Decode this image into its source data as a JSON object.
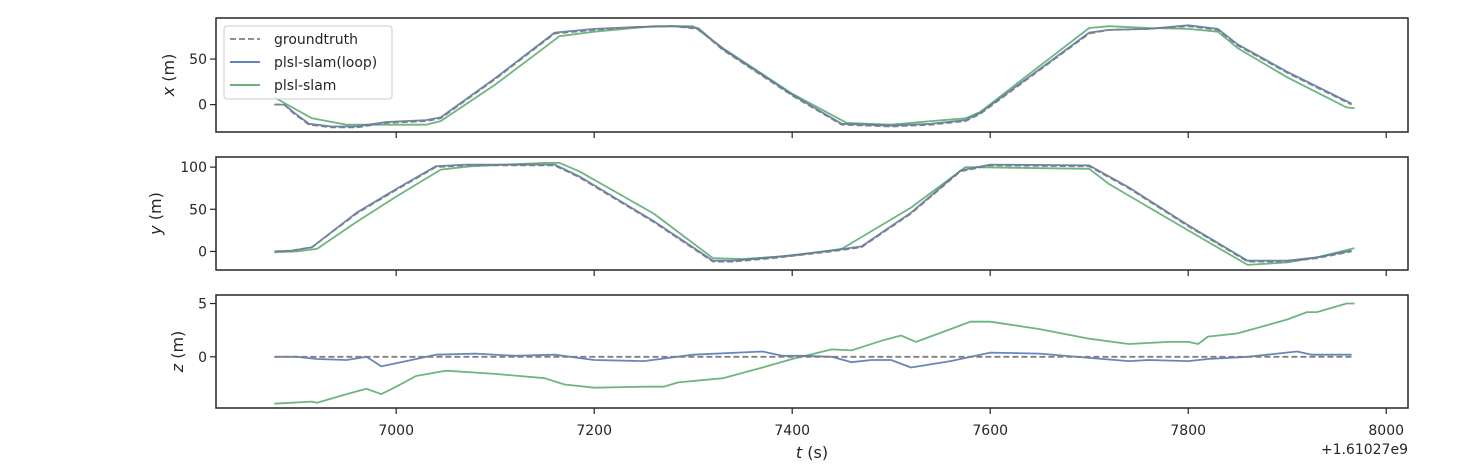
{
  "chart_data": {
    "type": "line",
    "x_offset_label": "+1.61027e9",
    "xlabel_var": "t",
    "xlabel_unit": " (s)",
    "xlim": [
      6818,
      8022
    ],
    "xticks": [
      7000,
      7200,
      7400,
      7600,
      7800,
      8000
    ],
    "legend": {
      "placement": "upper-left",
      "entries": [
        "groundtruth",
        "plsl-slam(loop)",
        "plsl-slam"
      ]
    },
    "colors": {
      "groundtruth": "#808080",
      "plsl-slam(loop)": "#4c72b0",
      "plsl-slam": "#55a868",
      "axes": "#262626"
    },
    "subplots": [
      {
        "ylabel_var": "x",
        "ylabel_unit": " (m)",
        "ylim": [
          -30,
          95
        ],
        "yticks": [
          0,
          50
        ],
        "series": [
          {
            "name": "groundtruth",
            "style": "dashed",
            "x": [
              6877,
              6887,
              6897,
              6912,
              6935,
              6960,
              6990,
              7030,
              7045,
              7100,
              7160,
              7200,
              7240,
              7280,
              7305,
              7330,
              7400,
              7450,
              7500,
              7540,
              7575,
              7590,
              7640,
              7700,
              7720,
              7760,
              7800,
              7830,
              7850,
              7900,
              7965
            ],
            "y": [
              0,
              0,
              -10,
              -22,
              -25,
              -25,
              -20,
              -18,
              -15,
              28,
              78,
              82,
              85,
              86,
              83,
              60,
              10,
              -22,
              -24,
              -22,
              -18,
              -10,
              30,
              78,
              82,
              83,
              86,
              82,
              65,
              35,
              0
            ]
          },
          {
            "name": "plsl-slam(loop)",
            "style": "solid",
            "x": [
              6877,
              6887,
              6897,
              6912,
              6935,
              6960,
              6990,
              7030,
              7045,
              7100,
              7160,
              7200,
              7240,
              7280,
              7305,
              7330,
              7400,
              7450,
              7500,
              7540,
              7575,
              7590,
              7640,
              7700,
              7720,
              7760,
              7800,
              7830,
              7850,
              7900,
              7965
            ],
            "y": [
              0,
              0,
              -9,
              -21,
              -24,
              -24,
              -19,
              -17,
              -14,
              29,
              79,
              83,
              85,
              86,
              84,
              61,
              11,
              -21,
              -23,
              -21,
              -17,
              -9,
              31,
              79,
              82,
              83,
              87,
              83,
              66,
              36,
              1
            ]
          },
          {
            "name": "plsl-slam",
            "style": "solid",
            "x": [
              6877,
              6890,
              6915,
              6950,
              6990,
              7030,
              7045,
              7100,
              7165,
              7200,
              7260,
              7300,
              7330,
              7400,
              7455,
              7500,
              7540,
              7575,
              7590,
              7640,
              7700,
              7720,
              7760,
              7800,
              7830,
              7850,
              7900,
              7960,
              7968
            ],
            "y": [
              8,
              0,
              -15,
              -22,
              -22,
              -22,
              -18,
              22,
              75,
              80,
              86,
              86,
              62,
              12,
              -20,
              -22,
              -18,
              -15,
              -8,
              34,
              84,
              86,
              84,
              83,
              80,
              62,
              30,
              -3,
              -4
            ]
          }
        ]
      },
      {
        "ylabel_var": "y",
        "ylabel_unit": " (m)",
        "ylim": [
          -22,
          112
        ],
        "yticks": [
          0,
          50,
          100
        ],
        "series": [
          {
            "name": "groundtruth",
            "style": "dashed",
            "x": [
              6877,
              6895,
              6915,
              6960,
              7000,
              7040,
              7070,
              7160,
              7185,
              7260,
              7320,
              7340,
              7380,
              7440,
              7470,
              7520,
              7570,
              7600,
              7700,
              7740,
              7800,
              7860,
              7900,
              7930,
              7965
            ],
            "y": [
              0,
              1,
              5,
              45,
              73,
              100,
              102,
              102,
              88,
              35,
              -12,
              -12,
              -8,
              0,
              5,
              45,
              95,
              102,
              101,
              75,
              30,
              -12,
              -12,
              -8,
              0
            ]
          },
          {
            "name": "plsl-slam(loop)",
            "style": "solid",
            "x": [
              6877,
              6895,
              6915,
              6960,
              7000,
              7040,
              7070,
              7160,
              7185,
              7260,
              7320,
              7340,
              7380,
              7440,
              7470,
              7520,
              7570,
              7600,
              7700,
              7740,
              7800,
              7860,
              7900,
              7930,
              7965
            ],
            "y": [
              0,
              1,
              5,
              46,
              74,
              101,
              103,
              103,
              89,
              36,
              -11,
              -11,
              -7,
              1,
              6,
              46,
              96,
              103,
              102,
              76,
              31,
              -11,
              -11,
              -7,
              1
            ]
          },
          {
            "name": "plsl-slam",
            "style": "solid",
            "x": [
              6877,
              6900,
              6920,
              6960,
              7000,
              7045,
              7075,
              7150,
              7165,
              7185,
              7260,
              7320,
              7350,
              7400,
              7450,
              7520,
              7575,
              7700,
              7720,
              7800,
              7860,
              7900,
              7930,
              7968
            ],
            "y": [
              -1,
              0,
              3,
              35,
              65,
              97,
              101,
              105,
              105,
              95,
              45,
              -8,
              -9,
              -5,
              3,
              52,
              100,
              98,
              80,
              25,
              -16,
              -13,
              -7,
              4
            ]
          }
        ]
      },
      {
        "ylabel_var": "z",
        "ylabel_unit": " (m)",
        "ylim": [
          -4.8,
          5.8
        ],
        "yticks": [
          0,
          5
        ],
        "series": [
          {
            "name": "groundtruth",
            "style": "dashed",
            "x": [
              6877,
              7965
            ],
            "y": [
              0,
              0
            ]
          },
          {
            "name": "plsl-slam(loop)",
            "style": "solid",
            "x": [
              6877,
              6900,
              6920,
              6950,
              6970,
              6985,
              7010,
              7040,
              7080,
              7120,
              7160,
              7200,
              7250,
              7300,
              7345,
              7370,
              7380,
              7390,
              7410,
              7440,
              7460,
              7480,
              7500,
              7520,
              7560,
              7600,
              7650,
              7700,
              7740,
              7760,
              7800,
              7820,
              7860,
              7910,
              7925,
              7965
            ],
            "y": [
              0,
              0,
              -0.2,
              -0.3,
              0,
              -0.9,
              -0.4,
              0.2,
              0.3,
              0.1,
              0.2,
              -0.3,
              -0.4,
              0.2,
              0.4,
              0.5,
              0.3,
              0.1,
              0.1,
              0,
              -0.5,
              -0.3,
              -0.3,
              -1.0,
              -0.4,
              0.4,
              0.3,
              -0.1,
              -0.4,
              -0.3,
              -0.4,
              -0.2,
              0,
              0.5,
              0.2,
              0.2
            ]
          },
          {
            "name": "plsl-slam",
            "style": "solid",
            "x": [
              6877,
              6915,
              6920,
              6950,
              6970,
              6985,
              7000,
              7020,
              7050,
              7100,
              7150,
              7170,
              7200,
              7250,
              7270,
              7285,
              7330,
              7370,
              7400,
              7440,
              7460,
              7490,
              7510,
              7525,
              7560,
              7580,
              7600,
              7650,
              7700,
              7740,
              7780,
              7800,
              7810,
              7820,
              7850,
              7900,
              7920,
              7930,
              7960,
              7968
            ],
            "y": [
              -4.4,
              -4.2,
              -4.3,
              -3.5,
              -3.0,
              -3.5,
              -2.8,
              -1.8,
              -1.3,
              -1.6,
              -2.0,
              -2.6,
              -2.9,
              -2.8,
              -2.8,
              -2.4,
              -2.0,
              -1.0,
              -0.2,
              0.7,
              0.6,
              1.5,
              2.0,
              1.4,
              2.6,
              3.3,
              3.3,
              2.6,
              1.7,
              1.2,
              1.4,
              1.4,
              1.2,
              1.9,
              2.2,
              3.5,
              4.2,
              4.2,
              5.0,
              5.0
            ]
          }
        ]
      }
    ]
  }
}
